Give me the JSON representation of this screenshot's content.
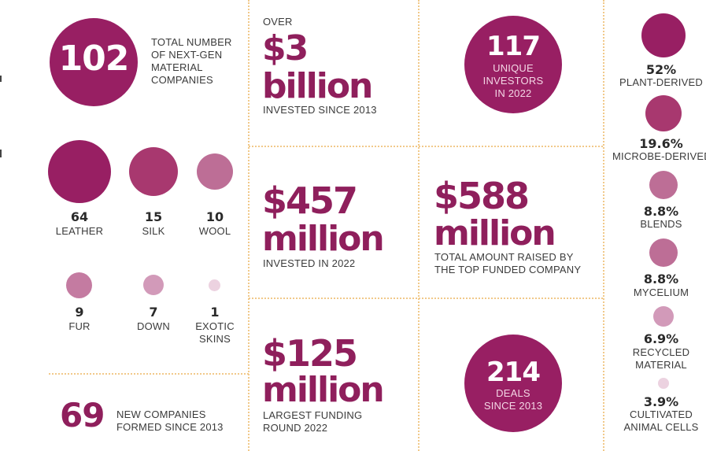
{
  "colors": {
    "primary": "#981f63",
    "medium": "#a8386f",
    "light": "#c57ea3",
    "pale": "#e9c9da",
    "divider": "#f1c98a",
    "text": "#3b3b3b"
  },
  "left": {
    "total": {
      "value": "102",
      "label_lines": [
        "TOTAL NUMBER",
        "OF NEXT-GEN",
        "MATERIAL",
        "COMPANIES"
      ]
    },
    "categories": [
      {
        "value": "64",
        "label": "LEATHER"
      },
      {
        "value": "15",
        "label": "SILK"
      },
      {
        "value": "10",
        "label": "WOOL"
      },
      {
        "value": "9",
        "label": "FUR"
      },
      {
        "value": "7",
        "label": "DOWN"
      },
      {
        "value": "1",
        "label_lines": [
          "EXOTIC",
          "SKINS"
        ]
      }
    ],
    "new_companies": {
      "value": "69",
      "label_lines": [
        "NEW COMPANIES",
        "FORMED SINCE 2013"
      ]
    }
  },
  "middle": {
    "over": "OVER",
    "billion": {
      "amount": "$3",
      "unit": "billion",
      "label": "INVESTED SINCE 2013"
    },
    "m457": {
      "amount": "$457",
      "unit": "million",
      "label": "INVESTED IN 2022"
    },
    "m125": {
      "amount": "$125",
      "unit": "million",
      "label_lines": [
        "LARGEST FUNDING",
        "ROUND 2022"
      ]
    }
  },
  "right_mid": {
    "investors": {
      "value": "117",
      "label_lines": [
        "UNIQUE",
        "INVESTORS",
        "IN 2022"
      ]
    },
    "m588": {
      "amount": "$588",
      "unit": "million",
      "label_lines": [
        "TOTAL AMOUNT RAISED BY",
        "THE TOP FUNDED COMPANY"
      ]
    },
    "deals": {
      "value": "214",
      "label_lines": [
        "DEALS",
        "SINCE 2013"
      ]
    }
  },
  "breakdown": [
    {
      "pct": "52%",
      "label_lines": [
        "PLANT-DERIVED"
      ]
    },
    {
      "pct": "19.6%",
      "label_lines": [
        "MICROBE-DERIVED"
      ]
    },
    {
      "pct": "8.8%",
      "label_lines": [
        "BLENDS"
      ]
    },
    {
      "pct": "8.8%",
      "label_lines": [
        "MYCELIUM"
      ]
    },
    {
      "pct": "6.9%",
      "label_lines": [
        "RECYCLED",
        "MATERIAL"
      ]
    },
    {
      "pct": "3.9%",
      "label_lines": [
        "CULTIVATED",
        "ANIMAL CELLS"
      ]
    }
  ]
}
